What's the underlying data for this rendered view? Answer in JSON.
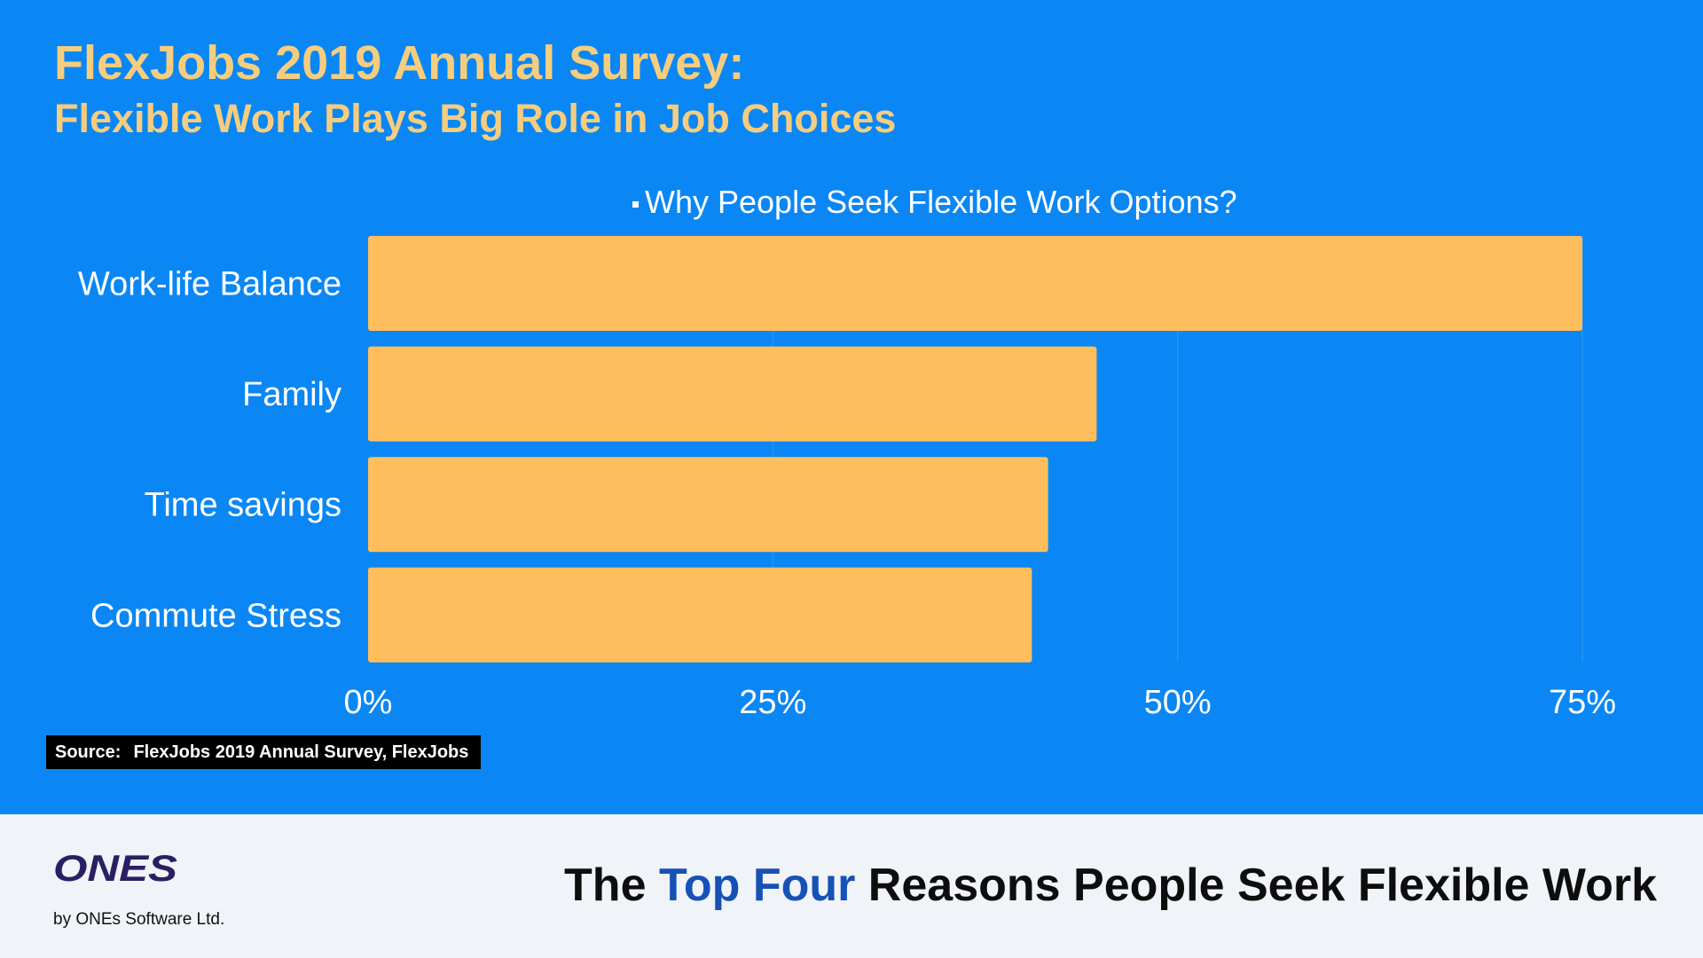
{
  "header": {
    "title": "FlexJobs 2019 Annual Survey:",
    "subtitle": "Flexible Work Plays Big Role in Job Choices"
  },
  "chart_data": {
    "type": "bar",
    "orientation": "horizontal",
    "title": "Why People Seek Flexible Work Options?",
    "categories": [
      "Work-life Balance",
      "Family",
      "Time savings",
      "Commute Stress"
    ],
    "values": [
      75,
      45,
      42,
      41
    ],
    "unit": "%",
    "xlim": [
      0,
      75
    ],
    "xticks": [
      0,
      25,
      50,
      75
    ],
    "xtick_labels": [
      "0%",
      "25%",
      "50%",
      "75%"
    ],
    "grid": true,
    "bar_color": "#ffbe5e"
  },
  "source": {
    "label": "Source:",
    "text": "FlexJobs 2019 Annual Survey, FlexJobs"
  },
  "footer": {
    "logo_text": "ONES",
    "byline": "by ONEs Software Ltd.",
    "tagline_pre": "The ",
    "tagline_highlight": "Top Four",
    "tagline_post": " Reasons People Seek Flexible Work"
  },
  "colors": {
    "background": "#0a87f4",
    "accent": "#f6cd7f",
    "highlight": "#1651b6",
    "footer_background": "#f0f3f7"
  }
}
